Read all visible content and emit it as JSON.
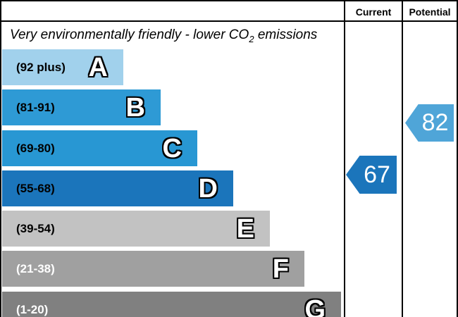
{
  "chart_data": {
    "type": "bar",
    "title": "Very environmentally friendly - lower CO2 emissions",
    "categories": [
      "A",
      "B",
      "C",
      "D",
      "E",
      "F",
      "G"
    ],
    "ranges": [
      "92 plus",
      "81-91",
      "69-80",
      "55-68",
      "39-54",
      "21-38",
      "1-20"
    ],
    "columns": [
      "Current",
      "Potential"
    ],
    "current": 67,
    "current_band": "D",
    "potential": 82,
    "potential_band": "B",
    "legend_position": "none",
    "grid": false
  },
  "header": {
    "current": "Current",
    "potential": "Potential"
  },
  "title": {
    "text_before_sub": "Very environmentally friendly - lower CO",
    "sub": "2",
    "text_after_sub": " emissions"
  },
  "bands": [
    {
      "letter": "A",
      "range_label": "(92 plus)",
      "color": "#a1d1ec",
      "label_color": "#000000"
    },
    {
      "letter": "B",
      "range_label": "(81-91)",
      "color": "#2e9ad5",
      "label_color": "#000000"
    },
    {
      "letter": "C",
      "range_label": "(69-80)",
      "color": "#2897d3",
      "label_color": "#000000"
    },
    {
      "letter": "D",
      "range_label": "(55-68)",
      "color": "#1b75bb",
      "label_color": "#000000"
    },
    {
      "letter": "E",
      "range_label": "(39-54)",
      "color": "#c2c2c2",
      "label_color": "#000000"
    },
    {
      "letter": "F",
      "range_label": "(21-38)",
      "color": "#a0a0a0",
      "label_color": "#ffffff"
    },
    {
      "letter": "G",
      "range_label": "(1-20)",
      "color": "#808080",
      "label_color": "#ffffff"
    }
  ],
  "arrows": {
    "current": {
      "value": "67",
      "color": "#1b75bb"
    },
    "potential": {
      "value": "82",
      "color": "#4fa5d8"
    }
  }
}
